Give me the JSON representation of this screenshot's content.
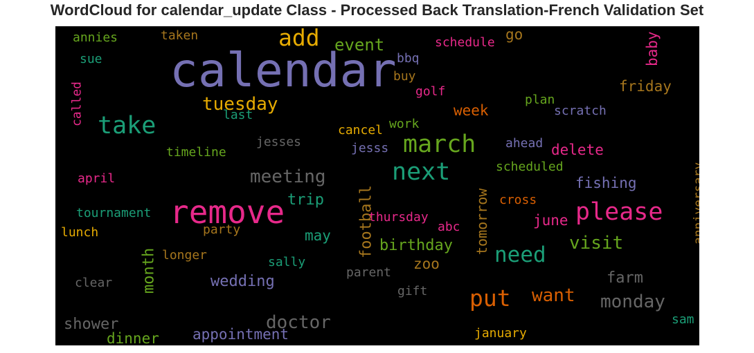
{
  "chart_data": {
    "type": "wordcloud",
    "title": "WordCloud for calendar_update Class - Processed Back Translation-French Validation Set",
    "background": "#000000",
    "colormap": "Dark2",
    "words": [
      {
        "text": "calendar",
        "color": "#7570b3"
      },
      {
        "text": "remove",
        "color": "#e7298a"
      },
      {
        "text": "take",
        "color": "#1b9e77"
      },
      {
        "text": "march",
        "color": "#66a61e"
      },
      {
        "text": "next",
        "color": "#1b9e77"
      },
      {
        "text": "please",
        "color": "#e7298a"
      },
      {
        "text": "add",
        "color": "#e6ab02"
      },
      {
        "text": "tuesday",
        "color": "#e6ab02"
      },
      {
        "text": "meeting",
        "color": "#666666"
      },
      {
        "text": "need",
        "color": "#1b9e77"
      },
      {
        "text": "put",
        "color": "#d95f02"
      },
      {
        "text": "doctor",
        "color": "#666666"
      },
      {
        "text": "monday",
        "color": "#666666"
      },
      {
        "text": "want",
        "color": "#d95f02"
      },
      {
        "text": "event",
        "color": "#66a61e"
      },
      {
        "text": "visit",
        "color": "#66a61e"
      },
      {
        "text": "wedding",
        "color": "#7570b3"
      },
      {
        "text": "appointment",
        "color": "#7570b3"
      },
      {
        "text": "birthday",
        "color": "#66a61e"
      },
      {
        "text": "football",
        "color": "#a6761d"
      },
      {
        "text": "tomorrow",
        "color": "#a6761d"
      },
      {
        "text": "trip",
        "color": "#1b9e77"
      },
      {
        "text": "month",
        "color": "#66a61e"
      },
      {
        "text": "fishing",
        "color": "#7570b3"
      },
      {
        "text": "farm",
        "color": "#666666"
      },
      {
        "text": "shower",
        "color": "#666666"
      },
      {
        "text": "dinner",
        "color": "#66a61e"
      },
      {
        "text": "friday",
        "color": "#a6761d"
      },
      {
        "text": "week",
        "color": "#d95f02"
      },
      {
        "text": "delete",
        "color": "#e7298a"
      },
      {
        "text": "june",
        "color": "#e7298a"
      },
      {
        "text": "may",
        "color": "#1b9e77"
      },
      {
        "text": "zoo",
        "color": "#a6761d"
      },
      {
        "text": "baby",
        "color": "#e7298a"
      },
      {
        "text": "go",
        "color": "#a6761d"
      },
      {
        "text": "anniversary",
        "color": "#a6761d"
      },
      {
        "text": "scratch",
        "color": "#7570b3"
      },
      {
        "text": "thursday",
        "color": "#e7298a"
      },
      {
        "text": "january",
        "color": "#e6ab02"
      },
      {
        "text": "annies",
        "color": "#66a61e"
      },
      {
        "text": "sue",
        "color": "#1b9e77"
      },
      {
        "text": "taken",
        "color": "#a6761d"
      },
      {
        "text": "bbq",
        "color": "#7570b3"
      },
      {
        "text": "schedule",
        "color": "#e7298a"
      },
      {
        "text": "buy",
        "color": "#a6761d"
      },
      {
        "text": "golf",
        "color": "#e7298a"
      },
      {
        "text": "plan",
        "color": "#66a61e"
      },
      {
        "text": "called",
        "color": "#e7298a"
      },
      {
        "text": "last",
        "color": "#1b9e77"
      },
      {
        "text": "cancel",
        "color": "#e6ab02"
      },
      {
        "text": "work",
        "color": "#66a61e"
      },
      {
        "text": "jesses",
        "color": "#666666"
      },
      {
        "text": "jesss",
        "color": "#7570b3"
      },
      {
        "text": "ahead",
        "color": "#7570b3"
      },
      {
        "text": "timeline",
        "color": "#66a61e"
      },
      {
        "text": "scheduled",
        "color": "#66a61e"
      },
      {
        "text": "april",
        "color": "#e7298a"
      },
      {
        "text": "cross",
        "color": "#d95f02"
      },
      {
        "text": "tournament",
        "color": "#1b9e77"
      },
      {
        "text": "lunch",
        "color": "#e6ab02"
      },
      {
        "text": "party",
        "color": "#a6761d"
      },
      {
        "text": "abc",
        "color": "#e7298a"
      },
      {
        "text": "longer",
        "color": "#a6761d"
      },
      {
        "text": "sally",
        "color": "#1b9e77"
      },
      {
        "text": "parent",
        "color": "#666666"
      },
      {
        "text": "clear",
        "color": "#666666"
      },
      {
        "text": "gift",
        "color": "#666666"
      },
      {
        "text": "sam",
        "color": "#1b9e77"
      }
    ]
  }
}
